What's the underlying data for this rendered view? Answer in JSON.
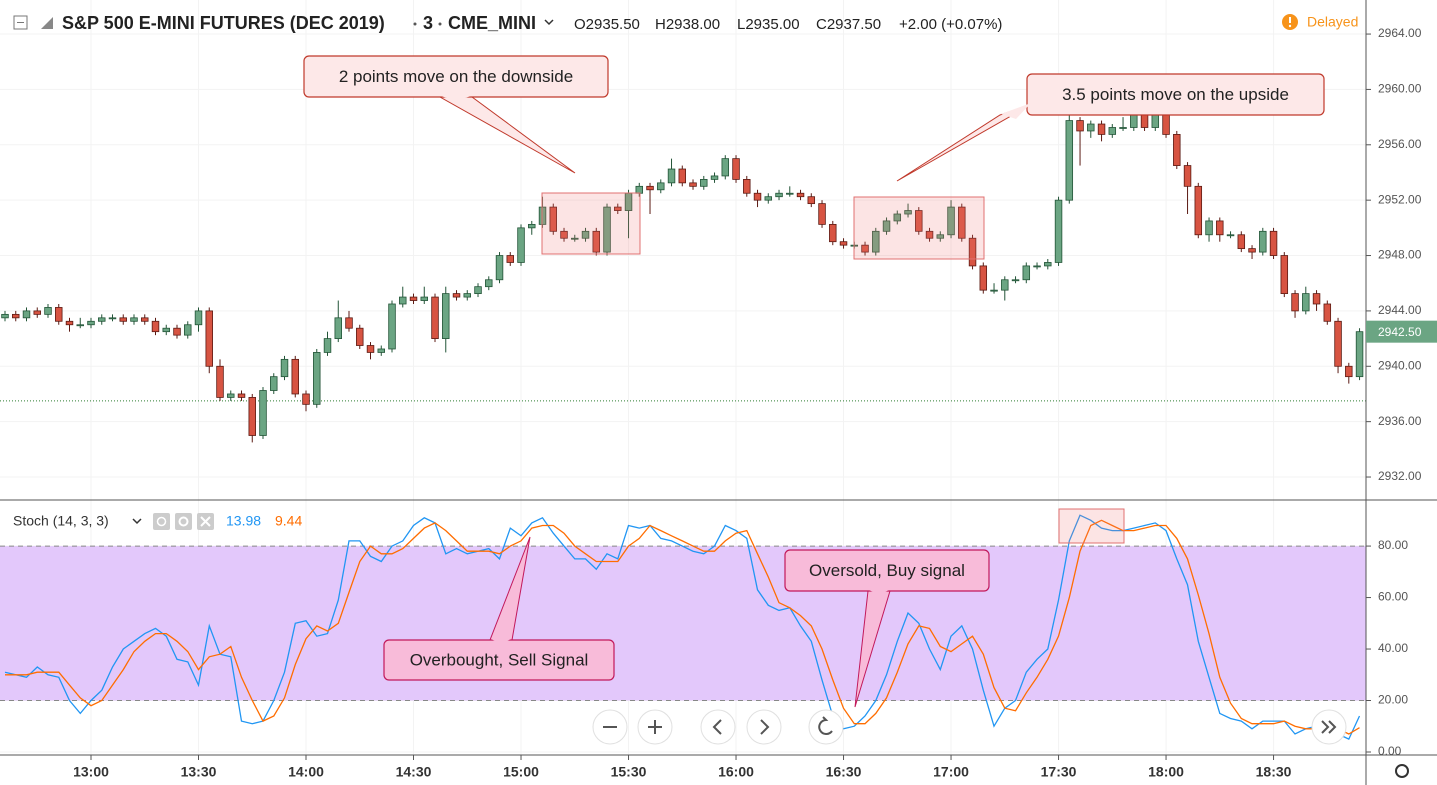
{
  "chart_data": [
    {
      "type": "candlestick",
      "title": "S&P 500 E-MINI FUTURES (DEC 2019)",
      "interval": "3",
      "exchange": "CME_MINI",
      "header": {
        "open": "O2935.50",
        "high": "H2938.00",
        "low": "L2935.00",
        "close": "C2937.50",
        "change": "+2.00 (+0.07%)"
      },
      "status": "Delayed",
      "colors": {
        "up": "#6ba583",
        "down": "#d75442",
        "up_border": "#225437",
        "down_border": "#5b1a13"
      },
      "xlim": [
        -0.465,
        126.6
      ],
      "ylim": [
        2930.34,
        2966.46
      ],
      "yticks": [
        {
          "value": 2932,
          "label": "2932.00"
        },
        {
          "value": 2936,
          "label": "2936.00"
        },
        {
          "value": 2940,
          "label": "2940.00"
        },
        {
          "value": 2944,
          "label": "2944.00"
        },
        {
          "value": 2948,
          "label": "2948.00"
        },
        {
          "value": 2952,
          "label": "2952.00"
        },
        {
          "value": 2956,
          "label": "2956.00"
        },
        {
          "value": 2960,
          "label": "2960.00"
        },
        {
          "value": 2964,
          "label": "2964.00"
        }
      ],
      "reference_line": 2937.5,
      "last_label": "2942.50",
      "annotations": [
        "2 points move on the downside",
        "3.5 points move on the upside"
      ],
      "candles": [
        [
          2943.5,
          2944,
          2943.25,
          2943.75
        ],
        [
          2943.75,
          2944,
          2943.25,
          2943.5
        ],
        [
          2943.5,
          2944.25,
          2943.25,
          2944
        ],
        [
          2944,
          2944.25,
          2943.5,
          2943.75
        ],
        [
          2943.75,
          2944.5,
          2943.5,
          2944.25
        ],
        [
          2944.25,
          2944.5,
          2943,
          2943.25
        ],
        [
          2943.25,
          2943.5,
          2942.5,
          2943
        ],
        [
          2943,
          2943.5,
          2942.75,
          2943
        ],
        [
          2943,
          2943.5,
          2942.75,
          2943.25
        ],
        [
          2943.25,
          2943.75,
          2943,
          2943.5
        ],
        [
          2943.5,
          2943.75,
          2943.25,
          2943.5
        ],
        [
          2943.5,
          2943.75,
          2943,
          2943.25
        ],
        [
          2943.25,
          2943.75,
          2943,
          2943.5
        ],
        [
          2943.5,
          2943.75,
          2943,
          2943.25
        ],
        [
          2943.25,
          2943.5,
          2942.25,
          2942.5
        ],
        [
          2942.5,
          2943,
          2942.25,
          2942.75
        ],
        [
          2942.75,
          2943,
          2942,
          2942.25
        ],
        [
          2942.25,
          2943.25,
          2942,
          2943
        ],
        [
          2943,
          2944.25,
          2942.5,
          2944
        ],
        [
          2944,
          2944.25,
          2939.5,
          2940
        ],
        [
          2940,
          2940.5,
          2937.5,
          2937.75
        ],
        [
          2937.75,
          2938.25,
          2937.5,
          2938
        ],
        [
          2938,
          2938.25,
          2937.5,
          2937.75
        ],
        [
          2937.75,
          2938,
          2934.5,
          2935
        ],
        [
          2935,
          2938.5,
          2934.75,
          2938.25
        ],
        [
          2938.25,
          2939.5,
          2938,
          2939.25
        ],
        [
          2939.25,
          2940.75,
          2939,
          2940.5
        ],
        [
          2940.5,
          2940.75,
          2937.75,
          2938
        ],
        [
          2938,
          2938.25,
          2936.75,
          2937.25
        ],
        [
          2937.25,
          2941.25,
          2937,
          2941
        ],
        [
          2941,
          2942.5,
          2940.75,
          2942
        ],
        [
          2942,
          2944.75,
          2941.75,
          2943.5
        ],
        [
          2943.5,
          2944,
          2942.5,
          2942.75
        ],
        [
          2942.75,
          2943,
          2941.25,
          2941.5
        ],
        [
          2941.5,
          2941.75,
          2940.5,
          2941
        ],
        [
          2941,
          2941.5,
          2940.75,
          2941.25
        ],
        [
          2941.25,
          2944.75,
          2941,
          2944.5
        ],
        [
          2944.5,
          2945.75,
          2944.25,
          2945
        ],
        [
          2945,
          2945.25,
          2944.5,
          2944.75
        ],
        [
          2944.75,
          2945.75,
          2944.5,
          2945
        ],
        [
          2945,
          2945.25,
          2941.75,
          2942
        ],
        [
          2942,
          2945.75,
          2941,
          2945.25
        ],
        [
          2945.25,
          2945.5,
          2944.75,
          2945
        ],
        [
          2945,
          2945.5,
          2944.75,
          2945.25
        ],
        [
          2945.25,
          2946,
          2945,
          2945.75
        ],
        [
          2945.75,
          2946.5,
          2945.5,
          2946.25
        ],
        [
          2946.25,
          2948.25,
          2946,
          2948
        ],
        [
          2948,
          2948.25,
          2947.25,
          2947.5
        ],
        [
          2947.5,
          2950.25,
          2947.25,
          2950
        ],
        [
          2950,
          2950.5,
          2949.5,
          2950.25
        ],
        [
          2950.25,
          2952.25,
          2950,
          2951.5
        ],
        [
          2951.5,
          2951.75,
          2949.5,
          2949.75
        ],
        [
          2949.75,
          2950,
          2949,
          2949.25
        ],
        [
          2949.25,
          2949.5,
          2949,
          2949.25
        ],
        [
          2949.25,
          2950,
          2949,
          2949.75
        ],
        [
          2949.75,
          2950,
          2948,
          2948.25
        ],
        [
          2948.25,
          2951.75,
          2948,
          2951.5
        ],
        [
          2951.5,
          2951.75,
          2951,
          2951.25
        ],
        [
          2951.25,
          2952.75,
          2949.25,
          2952.5
        ],
        [
          2952.5,
          2953.25,
          2952.25,
          2953
        ],
        [
          2953,
          2953.25,
          2951,
          2952.75
        ],
        [
          2952.75,
          2953.5,
          2952.5,
          2953.25
        ],
        [
          2953.25,
          2955,
          2953,
          2954.25
        ],
        [
          2954.25,
          2954.5,
          2953,
          2953.25
        ],
        [
          2953.25,
          2953.5,
          2952.75,
          2953
        ],
        [
          2953,
          2953.75,
          2952.75,
          2953.5
        ],
        [
          2953.5,
          2954,
          2953.25,
          2953.75
        ],
        [
          2953.75,
          2955.25,
          2953.5,
          2955
        ],
        [
          2955,
          2955.25,
          2953.25,
          2953.5
        ],
        [
          2953.5,
          2953.75,
          2952.25,
          2952.5
        ],
        [
          2952.5,
          2952.75,
          2951.5,
          2952
        ],
        [
          2952,
          2952.5,
          2951.75,
          2952.25
        ],
        [
          2952.25,
          2952.75,
          2952,
          2952.5
        ],
        [
          2952.5,
          2953,
          2952.25,
          2952.5
        ],
        [
          2952.5,
          2952.75,
          2952,
          2952.25
        ],
        [
          2952.25,
          2952.5,
          2951.5,
          2951.75
        ],
        [
          2951.75,
          2952,
          2950,
          2950.25
        ],
        [
          2950.25,
          2950.5,
          2948.75,
          2949
        ],
        [
          2949,
          2949.25,
          2948.5,
          2948.75
        ],
        [
          2948.75,
          2949,
          2948.5,
          2948.75
        ],
        [
          2948.75,
          2949,
          2948,
          2948.25
        ],
        [
          2948.25,
          2950,
          2948,
          2949.75
        ],
        [
          2949.75,
          2950.75,
          2949.5,
          2950.5
        ],
        [
          2950.5,
          2951.25,
          2950.25,
          2951
        ],
        [
          2951,
          2951.75,
          2950.75,
          2951.25
        ],
        [
          2951.25,
          2951.5,
          2949.5,
          2949.75
        ],
        [
          2949.75,
          2950,
          2949,
          2949.25
        ],
        [
          2949.25,
          2949.75,
          2949,
          2949.5
        ],
        [
          2949.5,
          2952,
          2949.25,
          2951.5
        ],
        [
          2951.5,
          2951.75,
          2949,
          2949.25
        ],
        [
          2949.25,
          2949.5,
          2947,
          2947.25
        ],
        [
          2947.25,
          2947.5,
          2945.25,
          2945.5
        ],
        [
          2945.5,
          2946,
          2945.25,
          2945.5
        ],
        [
          2945.5,
          2946.5,
          2944.75,
          2946.25
        ],
        [
          2946.25,
          2946.5,
          2946,
          2946.25
        ],
        [
          2946.25,
          2947.5,
          2946,
          2947.25
        ],
        [
          2947.25,
          2947.5,
          2947,
          2947.25
        ],
        [
          2947.25,
          2947.75,
          2947,
          2947.5
        ],
        [
          2947.5,
          2952.25,
          2947.25,
          2952
        ],
        [
          2952,
          2959,
          2951.75,
          2957.75
        ],
        [
          2957.75,
          2958,
          2954.5,
          2957
        ],
        [
          2957,
          2957.75,
          2956.5,
          2957.5
        ],
        [
          2957.5,
          2957.75,
          2956.25,
          2956.75
        ],
        [
          2956.75,
          2957.5,
          2956.5,
          2957.25
        ],
        [
          2957.25,
          2958,
          2957,
          2957.25
        ],
        [
          2957.25,
          2958.5,
          2957,
          2958.25
        ],
        [
          2958.25,
          2958.5,
          2957,
          2957.25
        ],
        [
          2957.25,
          2959,
          2957,
          2958.25
        ],
        [
          2958.25,
          2958.5,
          2956.5,
          2956.75
        ],
        [
          2956.75,
          2957,
          2954.25,
          2954.5
        ],
        [
          2954.5,
          2954.75,
          2951,
          2953
        ],
        [
          2953,
          2953.25,
          2949.25,
          2949.5
        ],
        [
          2949.5,
          2950.75,
          2949,
          2950.5
        ],
        [
          2950.5,
          2950.75,
          2949,
          2949.5
        ],
        [
          2949.5,
          2949.75,
          2949.25,
          2949.5
        ],
        [
          2949.5,
          2949.75,
          2948.25,
          2948.5
        ],
        [
          2948.5,
          2948.75,
          2947.75,
          2948.25
        ],
        [
          2948.25,
          2950,
          2948,
          2949.75
        ],
        [
          2949.75,
          2950,
          2947.75,
          2948
        ],
        [
          2948,
          2948.25,
          2945,
          2945.25
        ],
        [
          2945.25,
          2945.5,
          2943.5,
          2944
        ],
        [
          2944,
          2945.75,
          2943.75,
          2945.25
        ],
        [
          2945.25,
          2945.5,
          2944,
          2944.5
        ],
        [
          2944.5,
          2944.75,
          2943,
          2943.25
        ],
        [
          2943.25,
          2943.5,
          2939.5,
          2940
        ],
        [
          2940,
          2940.25,
          2938.75,
          2939.25
        ],
        [
          2939.25,
          2942.75,
          2939,
          2942.5
        ]
      ]
    },
    {
      "type": "line",
      "title": "Stoch (14, 3, 3)",
      "xlim": [
        -0.465,
        126.6
      ],
      "ylim": [
        -1.17,
        97.9
      ],
      "xticks": [
        {
          "value": 8,
          "label": "13:00"
        },
        {
          "value": 18,
          "label": "13:30"
        },
        {
          "value": 28,
          "label": "14:00"
        },
        {
          "value": 38,
          "label": "14:30"
        },
        {
          "value": 48,
          "label": "15:00"
        },
        {
          "value": 58,
          "label": "15:30"
        },
        {
          "value": 68,
          "label": "16:00"
        },
        {
          "value": 78,
          "label": "16:30"
        },
        {
          "value": 88,
          "label": "17:00"
        },
        {
          "value": 98,
          "label": "17:30"
        },
        {
          "value": 108,
          "label": "18:00"
        },
        {
          "value": 118,
          "label": "18:30"
        }
      ],
      "yticks": [
        {
          "value": 0,
          "label": "0.00"
        },
        {
          "value": 20,
          "label": "20.00"
        },
        {
          "value": 40,
          "label": "40.00"
        },
        {
          "value": 60,
          "label": "60.00"
        },
        {
          "value": 80,
          "label": "80.00"
        }
      ],
      "bands": [
        20,
        80
      ],
      "band_color": "#e3c8fb",
      "annotations": [
        "Overbought, Sell Signal",
        "Oversold, Buy signal"
      ],
      "series": [
        {
          "color": "#2196f3",
          "values": [
            31,
            30,
            29,
            33,
            30,
            29,
            20,
            15,
            20,
            24,
            33,
            40,
            43,
            46,
            48,
            45,
            36,
            35,
            26,
            49,
            38,
            37,
            12,
            11,
            12,
            20,
            31,
            50,
            51,
            45,
            46,
            59,
            82,
            82,
            76,
            74,
            80,
            82,
            88,
            91,
            89,
            77,
            79,
            77,
            78,
            79,
            75,
            87,
            84,
            89,
            91,
            85,
            80,
            75,
            75,
            71,
            77,
            75,
            88,
            87,
            88,
            83,
            82,
            80,
            78,
            77,
            80,
            88,
            86,
            83,
            63,
            57,
            55,
            56,
            49,
            43,
            28,
            14,
            9,
            10,
            14,
            20,
            30,
            43,
            54,
            50,
            40,
            32,
            45,
            49,
            40,
            24,
            10,
            17,
            20,
            31,
            36,
            40,
            59,
            82,
            92,
            90,
            87,
            86,
            86,
            87,
            88,
            89,
            86,
            75,
            65,
            43,
            29,
            15,
            13,
            12,
            9,
            12,
            12,
            12,
            7,
            9,
            10,
            9,
            7,
            5,
            13.98
          ]
        },
        {
          "color": "#ff6d00",
          "values": [
            30,
            30,
            30,
            31,
            31,
            31,
            26,
            21,
            18,
            20,
            26,
            32,
            39,
            43,
            46,
            46,
            43,
            39,
            32,
            37,
            38,
            41,
            29,
            20,
            12,
            14,
            21,
            34,
            44,
            49,
            47,
            50,
            62,
            74,
            80,
            77,
            77,
            79,
            83,
            87,
            89,
            86,
            82,
            78,
            78,
            78,
            77,
            80,
            82,
            87,
            88,
            88,
            85,
            80,
            77,
            74,
            74,
            74,
            80,
            83,
            88,
            86,
            84,
            82,
            80,
            78,
            78,
            82,
            85,
            86,
            77,
            68,
            58,
            56,
            53,
            49,
            40,
            28,
            17,
            11,
            11,
            15,
            21,
            31,
            42,
            49,
            48,
            41,
            39,
            42,
            45,
            38,
            25,
            17,
            16,
            23,
            29,
            36,
            45,
            60,
            78,
            88,
            90,
            88,
            86,
            86,
            87,
            88,
            88,
            83,
            75,
            61,
            46,
            29,
            19,
            13,
            11,
            11,
            11,
            12,
            10,
            9,
            9,
            9,
            9,
            7,
            9.44
          ]
        }
      ]
    }
  ]
}
